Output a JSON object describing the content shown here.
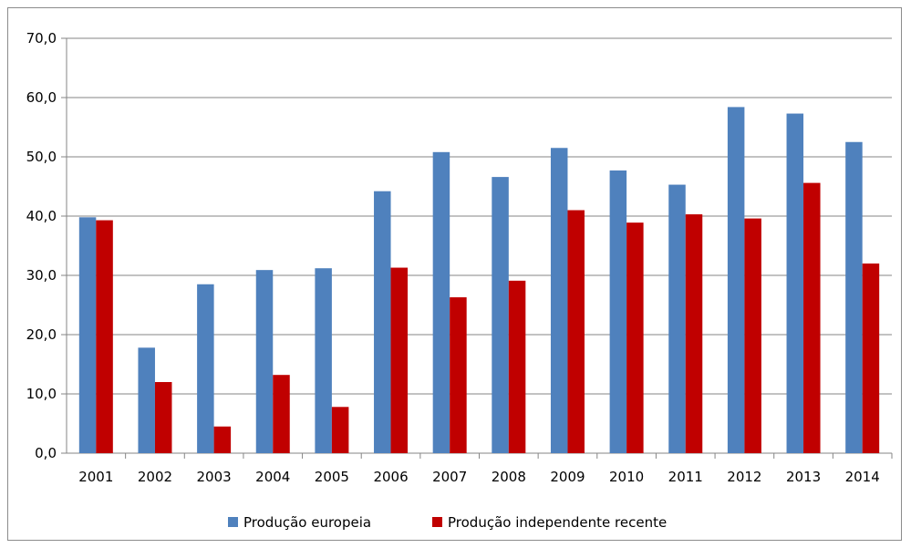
{
  "chart_data": {
    "type": "bar",
    "categories": [
      "2001",
      "2002",
      "2003",
      "2004",
      "2005",
      "2006",
      "2007",
      "2008",
      "2009",
      "2010",
      "2011",
      "2012",
      "2013",
      "2014"
    ],
    "series": [
      {
        "name": "Produção europeia",
        "color": "#4f81bd",
        "values": [
          39.8,
          17.8,
          28.5,
          30.9,
          31.2,
          44.2,
          50.8,
          46.6,
          51.5,
          47.7,
          45.3,
          58.4,
          57.3,
          52.5
        ]
      },
      {
        "name": "Produção independente recente",
        "color": "#c00000",
        "values": [
          39.3,
          12.0,
          4.5,
          13.2,
          7.8,
          31.3,
          26.3,
          29.1,
          41.0,
          38.9,
          40.3,
          39.6,
          45.6,
          32.0
        ]
      }
    ],
    "yticks": [
      "0,0",
      "10,0",
      "20,0",
      "30,0",
      "40,0",
      "50,0",
      "60,0",
      "70,0"
    ],
    "ylim": [
      0,
      70
    ],
    "grid": true,
    "legend_position": "bottom"
  }
}
